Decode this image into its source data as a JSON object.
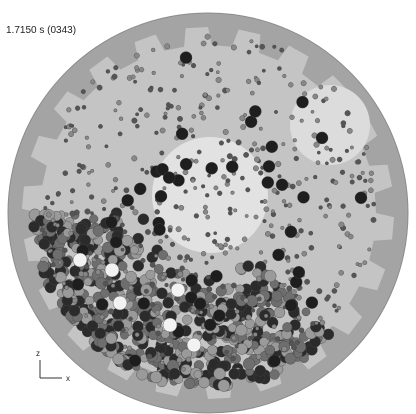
{
  "header": {
    "time": "1.7150 s (0343)"
  },
  "axes": {
    "vertical": "z",
    "horizontal": "x"
  }
}
